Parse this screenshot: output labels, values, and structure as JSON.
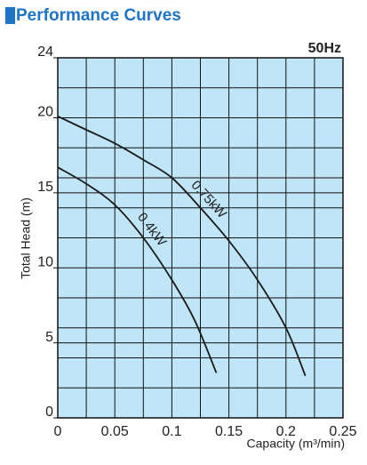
{
  "chart_data": {
    "type": "line",
    "title": "Performance Curves",
    "subtitle": "50Hz",
    "x_label": "Capacity (m³/min)",
    "y_label": "Total Head (m)",
    "xlim": [
      0,
      0.25
    ],
    "ylim": [
      0,
      24
    ],
    "xticks": [
      0,
      0.05,
      0.1,
      0.15,
      0.2,
      0.25
    ],
    "yticks": [
      0,
      5,
      10,
      15,
      20,
      24
    ],
    "x_minor_ticks": [
      0.025,
      0.075,
      0.125,
      0.175,
      0.225
    ],
    "y_minor_ticks": [
      2,
      4,
      6,
      8,
      12,
      14,
      16,
      18,
      22
    ],
    "grid": true,
    "plot_background": "#bfe5f6",
    "series": [
      {
        "name": "0.75kW",
        "color": "#1a1a1a",
        "x": [
          0,
          0.025,
          0.05,
          0.075,
          0.1,
          0.125,
          0.15,
          0.175,
          0.2,
          0.217
        ],
        "values": [
          20.1,
          19.2,
          18.3,
          17.2,
          16,
          14,
          11.8,
          9.2,
          6,
          2.8
        ]
      },
      {
        "name": "0.4kW",
        "color": "#1a1a1a",
        "x": [
          0,
          0.025,
          0.05,
          0.075,
          0.1,
          0.12,
          0.139
        ],
        "values": [
          16.7,
          15.6,
          14.2,
          12,
          9.2,
          6.5,
          3
        ]
      }
    ]
  }
}
